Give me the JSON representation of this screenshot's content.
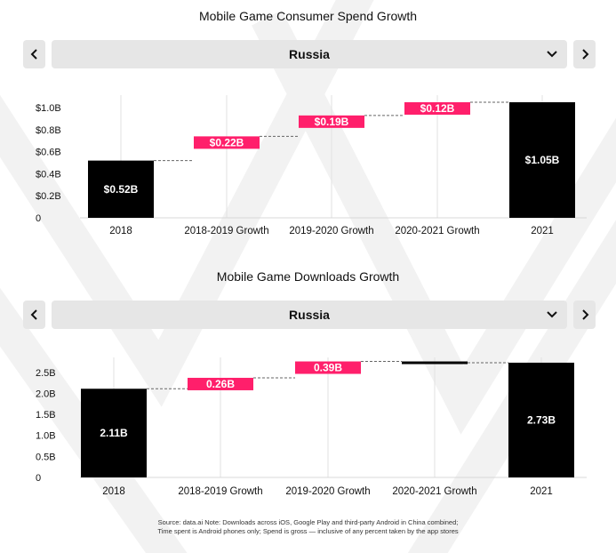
{
  "charts": [
    {
      "title": "Mobile Game Consumer Spend Growth",
      "selector": {
        "value": "Russia",
        "prev_icon": "chevron-left-icon",
        "next_icon": "chevron-right-icon",
        "dropdown_icon": "chevron-down-icon"
      }
    },
    {
      "title": "Mobile Game Downloads Growth",
      "selector": {
        "value": "Russia",
        "prev_icon": "chevron-left-icon",
        "next_icon": "chevron-right-icon",
        "dropdown_icon": "chevron-down-icon"
      }
    }
  ],
  "colors": {
    "total": "#000000",
    "increase": "#ff1f6b",
    "panel": "#e6e6e6"
  },
  "chart_data": [
    {
      "type": "bar",
      "subtype": "waterfall",
      "title": "Mobile Game Consumer Spend Growth",
      "categories": [
        "2018",
        "2018-2019 Growth",
        "2019-2020 Growth",
        "2020-2021 Growth",
        "2021"
      ],
      "values": [
        0.52,
        0.22,
        0.19,
        0.12,
        1.05
      ],
      "kinds": [
        "total",
        "delta",
        "delta",
        "delta",
        "total"
      ],
      "labels": [
        "$0.52B",
        "$0.22B",
        "$0.19B",
        "$0.12B",
        "$1.05B"
      ],
      "yticks": [
        "0",
        "$0.2B",
        "$0.4B",
        "$0.6B",
        "$0.8B",
        "$1.0B"
      ],
      "ytick_values": [
        0,
        0.2,
        0.4,
        0.6,
        0.8,
        1.0
      ],
      "ylim": [
        0,
        1.05
      ],
      "grid": "vertical"
    },
    {
      "type": "bar",
      "subtype": "waterfall",
      "title": "Mobile Game Downloads Growth",
      "categories": [
        "2018",
        "2018-2019 Growth",
        "2019-2020 Growth",
        "2020-2021 Growth",
        "2021"
      ],
      "values": [
        2.11,
        0.26,
        0.39,
        -0.03,
        2.73
      ],
      "kinds": [
        "total",
        "delta",
        "delta",
        "delta",
        "total"
      ],
      "labels": [
        "2.11B",
        "0.26B",
        "0.39B",
        "",
        "2.73B"
      ],
      "yticks": [
        "0",
        "0.5B",
        "1.0B",
        "1.5B",
        "2.0B",
        "2.5B"
      ],
      "ytick_values": [
        0,
        0.5,
        1.0,
        1.5,
        2.0,
        2.5
      ],
      "ylim": [
        0,
        2.75
      ],
      "grid": "vertical"
    }
  ],
  "source": {
    "line1": "Source: data.ai Note: Downloads across iOS, Google Play and third-party Android in China combined;",
    "line2": "Time spent is Android phones only; Spend is gross — inclusive of any percent taken by the app stores"
  }
}
